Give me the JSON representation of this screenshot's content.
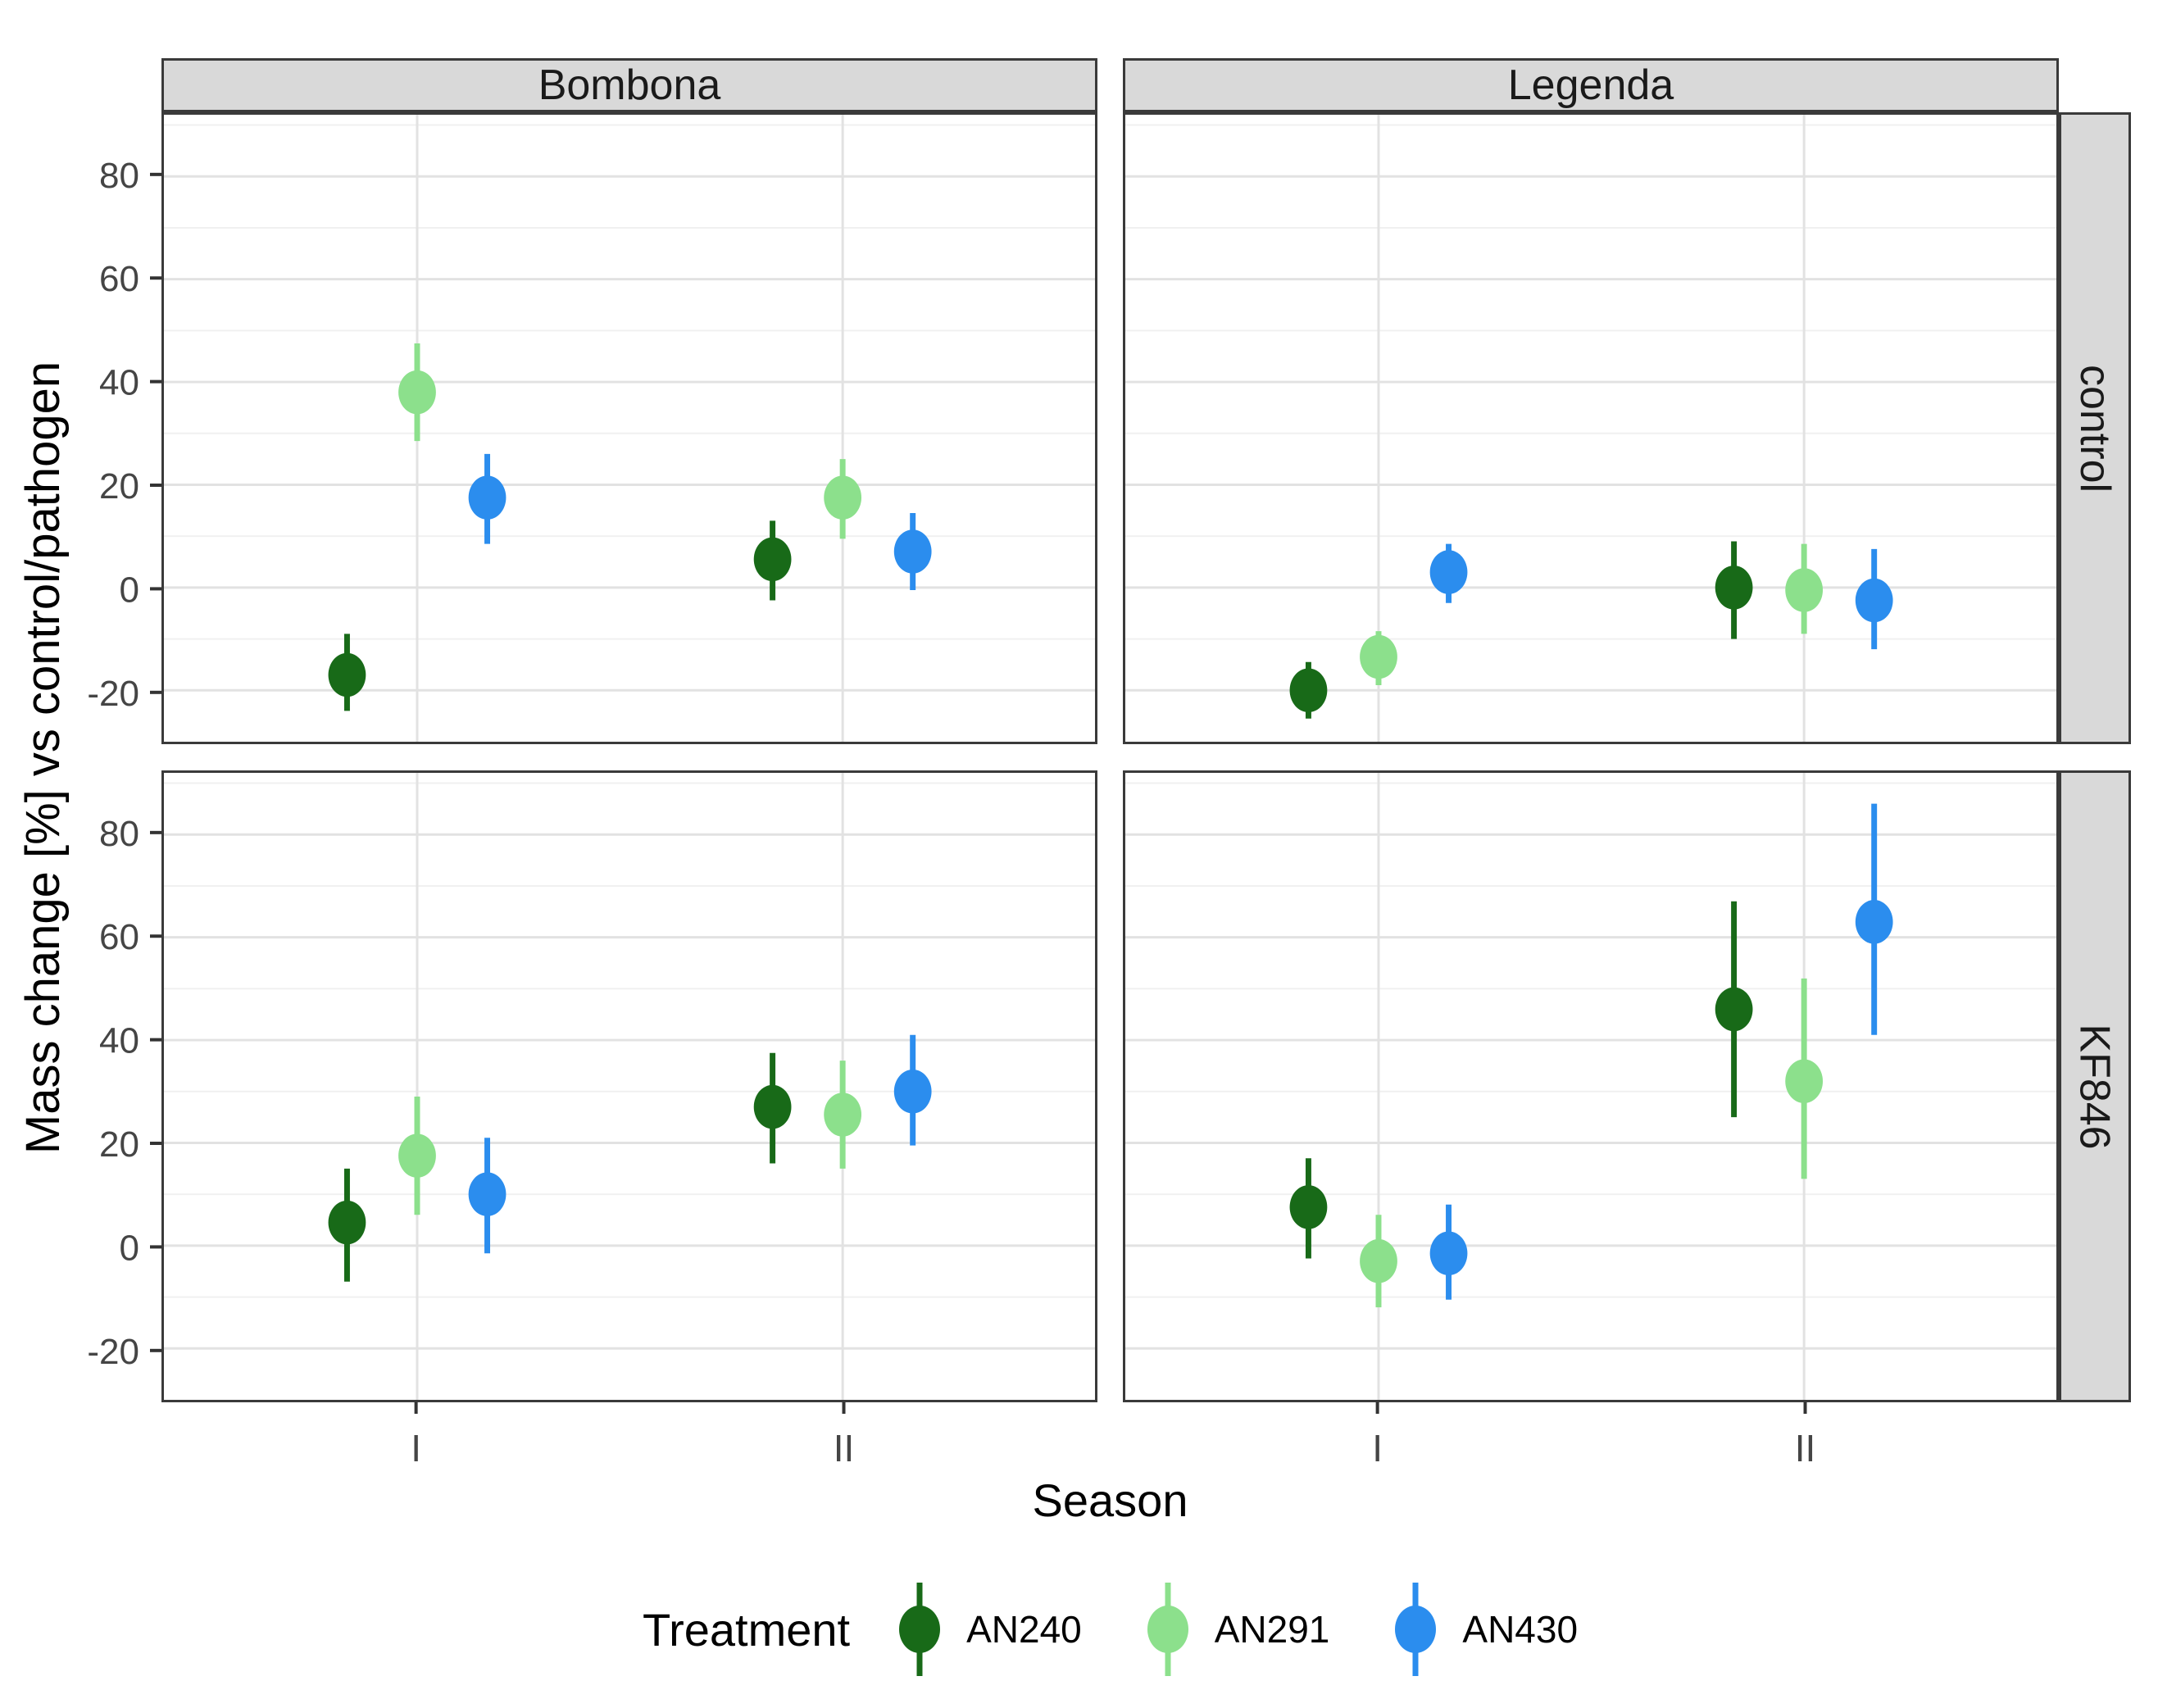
{
  "figure": {
    "y_axis_title": "Mass change [%] vs control/pathogen",
    "x_axis_title": "Season"
  },
  "chart_data": {
    "type": "scatter",
    "chart_kind": "point-with-errorbar, 2x2 facet grid",
    "title": "",
    "xlabel": "Season",
    "ylabel": "Mass change [%] vs control/pathogen",
    "facet_cols": [
      "Bombona",
      "Legenda"
    ],
    "facet_rows": [
      "control",
      "KF846"
    ],
    "x_categories": [
      "I",
      "II"
    ],
    "ylim": [
      -30,
      92
    ],
    "yticks": [
      80,
      60,
      40,
      20,
      0,
      -20
    ],
    "yticks_minor": [
      90,
      70,
      50,
      30,
      10,
      -10
    ],
    "grid": "horizontal major+minor, vertical major at season centers",
    "legend_title": "Treatment",
    "legend_position": "bottom",
    "series": [
      {
        "name": "AN240",
        "color": "#186a18"
      },
      {
        "name": "AN291",
        "color": "#8ce08c"
      },
      {
        "name": "AN430",
        "color": "#2b8dee"
      }
    ],
    "points": [
      {
        "facet_col": "Bombona",
        "facet_row": "control",
        "season": "I",
        "treatment": "AN240",
        "y": -17,
        "ymin": -24,
        "ymax": -9
      },
      {
        "facet_col": "Bombona",
        "facet_row": "control",
        "season": "I",
        "treatment": "AN291",
        "y": 38,
        "ymin": 28.5,
        "ymax": 47.5
      },
      {
        "facet_col": "Bombona",
        "facet_row": "control",
        "season": "I",
        "treatment": "AN430",
        "y": 17.5,
        "ymin": 8.5,
        "ymax": 26
      },
      {
        "facet_col": "Bombona",
        "facet_row": "control",
        "season": "II",
        "treatment": "AN240",
        "y": 5.5,
        "ymin": -2.5,
        "ymax": 13
      },
      {
        "facet_col": "Bombona",
        "facet_row": "control",
        "season": "II",
        "treatment": "AN291",
        "y": 17.5,
        "ymin": 9.5,
        "ymax": 25
      },
      {
        "facet_col": "Bombona",
        "facet_row": "control",
        "season": "II",
        "treatment": "AN430",
        "y": 7,
        "ymin": -0.5,
        "ymax": 14.5
      },
      {
        "facet_col": "Legenda",
        "facet_row": "control",
        "season": "I",
        "treatment": "AN240",
        "y": -20,
        "ymin": -25.5,
        "ymax": -14.5
      },
      {
        "facet_col": "Legenda",
        "facet_row": "control",
        "season": "I",
        "treatment": "AN291",
        "y": -13.5,
        "ymin": -19,
        "ymax": -8.5
      },
      {
        "facet_col": "Legenda",
        "facet_row": "control",
        "season": "I",
        "treatment": "AN430",
        "y": 3,
        "ymin": -3,
        "ymax": 8.5
      },
      {
        "facet_col": "Legenda",
        "facet_row": "control",
        "season": "II",
        "treatment": "AN240",
        "y": 0,
        "ymin": -10,
        "ymax": 9
      },
      {
        "facet_col": "Legenda",
        "facet_row": "control",
        "season": "II",
        "treatment": "AN291",
        "y": -0.5,
        "ymin": -9,
        "ymax": 8.5
      },
      {
        "facet_col": "Legenda",
        "facet_row": "control",
        "season": "II",
        "treatment": "AN430",
        "y": -2.5,
        "ymin": -12,
        "ymax": 7.5
      },
      {
        "facet_col": "Bombona",
        "facet_row": "KF846",
        "season": "I",
        "treatment": "AN240",
        "y": 4.5,
        "ymin": -7,
        "ymax": 15
      },
      {
        "facet_col": "Bombona",
        "facet_row": "KF846",
        "season": "I",
        "treatment": "AN291",
        "y": 17.5,
        "ymin": 6,
        "ymax": 29
      },
      {
        "facet_col": "Bombona",
        "facet_row": "KF846",
        "season": "I",
        "treatment": "AN430",
        "y": 10,
        "ymin": -1.5,
        "ymax": 21
      },
      {
        "facet_col": "Bombona",
        "facet_row": "KF846",
        "season": "II",
        "treatment": "AN240",
        "y": 27,
        "ymin": 16,
        "ymax": 37.5
      },
      {
        "facet_col": "Bombona",
        "facet_row": "KF846",
        "season": "II",
        "treatment": "AN291",
        "y": 25.5,
        "ymin": 15,
        "ymax": 36
      },
      {
        "facet_col": "Bombona",
        "facet_row": "KF846",
        "season": "II",
        "treatment": "AN430",
        "y": 30,
        "ymin": 19.5,
        "ymax": 41
      },
      {
        "facet_col": "Legenda",
        "facet_row": "KF846",
        "season": "I",
        "treatment": "AN240",
        "y": 7.5,
        "ymin": -2.5,
        "ymax": 17
      },
      {
        "facet_col": "Legenda",
        "facet_row": "KF846",
        "season": "I",
        "treatment": "AN291",
        "y": -3,
        "ymin": -12,
        "ymax": 6
      },
      {
        "facet_col": "Legenda",
        "facet_row": "KF846",
        "season": "I",
        "treatment": "AN430",
        "y": -1.5,
        "ymin": -10.5,
        "ymax": 8
      },
      {
        "facet_col": "Legenda",
        "facet_row": "KF846",
        "season": "II",
        "treatment": "AN240",
        "y": 46,
        "ymin": 25,
        "ymax": 67
      },
      {
        "facet_col": "Legenda",
        "facet_row": "KF846",
        "season": "II",
        "treatment": "AN291",
        "y": 32,
        "ymin": 13,
        "ymax": 52
      },
      {
        "facet_col": "Legenda",
        "facet_row": "KF846",
        "season": "II",
        "treatment": "AN430",
        "y": 63,
        "ymin": 41,
        "ymax": 86
      }
    ],
    "style": {
      "strip_bg": "#d9d9d9",
      "border": "#3a3a3a",
      "grid_major": "#e2e2e2",
      "grid_minor": "#f0f0f0",
      "tick_mark": "#333333",
      "tick_text": "#454545",
      "background": "#ffffff"
    }
  }
}
